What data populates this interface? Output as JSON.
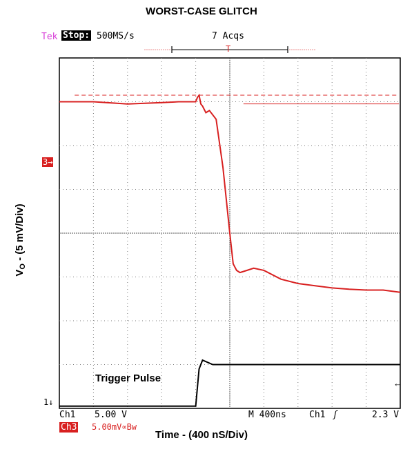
{
  "title": "WORST-CASE GLITCH",
  "x_axis_label": "Time - (400 nS/Div)",
  "y_axis_label_main": "V",
  "y_axis_label_sub": "O",
  "y_axis_label_rest": " -  (5 mV/Div)",
  "scope": {
    "brand": "Tek",
    "state": "Stop:",
    "sample_rate": "500MS/s",
    "acquisitions": "7 Acqs",
    "ch1_label": "Ch1",
    "ch1_scale": "5.00 V",
    "ch3_label": "Ch3",
    "ch3_scale": "5.00mV∝Bw",
    "time_base": "M 400ns",
    "trigger_source": "Ch1",
    "trigger_slope": "ʃ",
    "trigger_level": "2.3 V",
    "ch3_marker": "3→",
    "ch1_marker": "1↓",
    "trigger_marker": "T",
    "right_arrow": "←",
    "colors": {
      "ch3": "#d82020",
      "ch1": "#000000",
      "grid": "#7a7a7a",
      "brand": "#d63bd6"
    }
  },
  "annotation": "Trigger Pulse",
  "chart_data": {
    "type": "line",
    "title": "WORST-CASE GLITCH",
    "xlabel": "Time - (400 nS/Div)",
    "ylabel": "VO - (5 mV/Div)",
    "x_divisions": 10,
    "y_divisions": 8,
    "grid": true,
    "series": [
      {
        "name": "Ch3",
        "x": [
          0,
          1,
          2,
          3,
          3.5,
          3.9,
          4.0,
          4.05,
          4.1,
          4.15,
          4.2,
          4.3,
          4.4,
          4.6,
          4.8,
          5.0,
          5.1,
          5.2,
          5.3,
          5.5,
          5.7,
          6.0,
          6.5,
          7.0,
          7.5,
          8.0,
          8.5,
          9.0,
          9.5,
          10.0
        ],
        "y": [
          7.0,
          7.0,
          6.95,
          6.98,
          7.0,
          7.0,
          7.0,
          7.1,
          7.15,
          6.95,
          6.9,
          6.75,
          6.8,
          6.6,
          5.5,
          4.0,
          3.3,
          3.15,
          3.1,
          3.15,
          3.2,
          3.15,
          2.95,
          2.85,
          2.8,
          2.75,
          2.72,
          2.7,
          2.7,
          2.65
        ]
      },
      {
        "name": "Ch1",
        "x": [
          0,
          2,
          3.9,
          4.0,
          4.1,
          4.2,
          4.5,
          5.0,
          6.0,
          7.0,
          8.0,
          9.0,
          10.0
        ],
        "y": [
          0.05,
          0.05,
          0.05,
          0.05,
          0.9,
          1.1,
          1.0,
          1.0,
          1.0,
          1.0,
          1.0,
          1.0,
          1.0
        ]
      }
    ],
    "references": [
      {
        "name": "ref-dashed",
        "y": 7.15
      },
      {
        "name": "ref-solid",
        "y": 6.95
      }
    ]
  }
}
